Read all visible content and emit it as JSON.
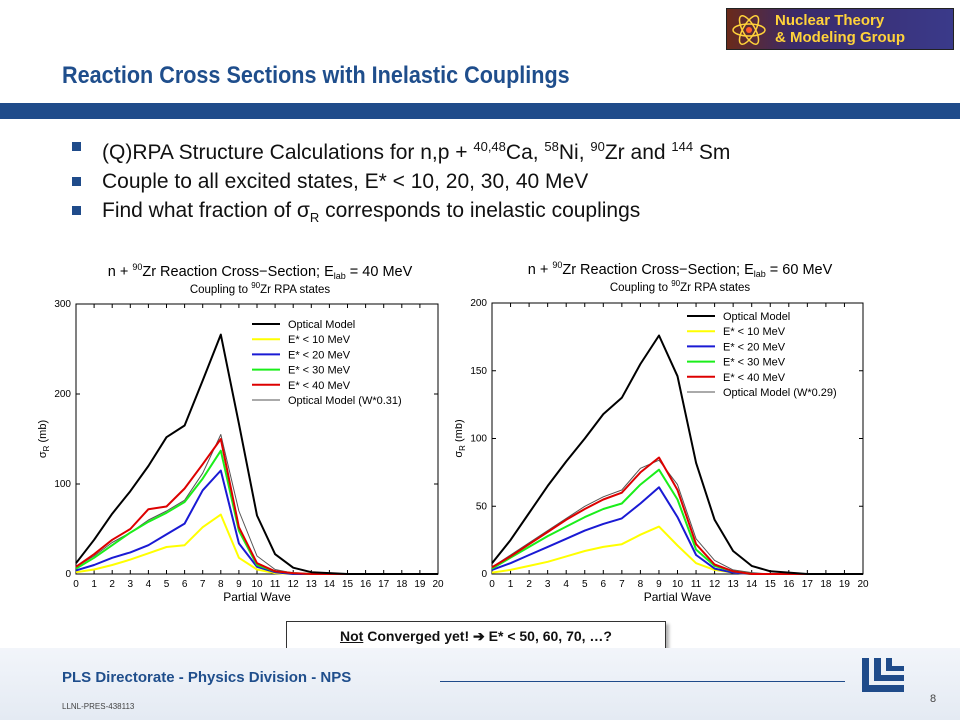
{
  "logo": {
    "line1": "Nuclear Theory",
    "line2": "& Modeling Group"
  },
  "title": "Reaction Cross Sections with Inelastic Couplings",
  "bullets": {
    "b1": {
      "pre": "(Q)RPA Structure Calculations for n,p + ",
      "s1": "40,48",
      "t1": "Ca, ",
      "s2": "58",
      "t2": "Ni, ",
      "s3": "90",
      "t3": "Zr and ",
      "s4": "144",
      "t4": " Sm"
    },
    "b2": "Couple to all excited states, E* < 10, 20, 30, 40 MeV",
    "b3": {
      "pre": "Find what fraction of σ",
      "sub": "R",
      "post": " corresponds to inelastic couplings"
    }
  },
  "note": {
    "underlined": "Not",
    "rest1": " Converged yet! ",
    "arrow": "➔",
    "rest2": " E* < 50, 60, 70, …?"
  },
  "footer": {
    "text": "PLS Directorate - Physics Division -  NPS",
    "id": "LLNL-PRES-438113",
    "page": "8"
  },
  "colors": {
    "optical": "#000000",
    "e10": "#ffff00",
    "e20": "#1a1ad4",
    "e30": "#1aee1a",
    "e40": "#dd0000",
    "scaled": "#555555",
    "accent": "#1f4b8a"
  },
  "chart_data": [
    {
      "type": "line",
      "title": "n + 90Zr Reaction Cross−Section; E_lab = 40 MeV",
      "subtitle": "Coupling to 90Zr RPA states",
      "xlabel": "Partial Wave",
      "ylabel": "σR (mb)",
      "xlim": [
        0,
        20
      ],
      "ylim": [
        0,
        300
      ],
      "x_ticks": [
        0,
        1,
        2,
        3,
        4,
        5,
        6,
        7,
        8,
        9,
        10,
        11,
        12,
        13,
        14,
        15,
        16,
        17,
        18,
        19,
        20
      ],
      "y_ticks": [
        0,
        100,
        200,
        300
      ],
      "legend_position": "top-right",
      "series": [
        {
          "name": "Optical Model",
          "color": "#000000",
          "width": 2,
          "x": [
            0,
            1,
            2,
            3,
            4,
            5,
            6,
            7,
            8,
            9,
            10,
            11,
            12,
            13,
            14,
            15,
            16,
            17,
            18,
            19,
            20
          ],
          "y": [
            12,
            38,
            67,
            92,
            120,
            152,
            165,
            215,
            266,
            167,
            65,
            22,
            7,
            2,
            1,
            0,
            0,
            0,
            0,
            0,
            0
          ]
        },
        {
          "name": "E* < 10 MeV",
          "color": "#ffff00",
          "width": 2,
          "x": [
            0,
            1,
            2,
            3,
            4,
            5,
            6,
            7,
            8,
            9,
            10,
            11,
            12,
            13,
            14,
            15,
            16,
            17,
            18,
            19,
            20
          ],
          "y": [
            2,
            5,
            10,
            16,
            23,
            30,
            32,
            52,
            66,
            18,
            5,
            1,
            0,
            0,
            0,
            0,
            0,
            0,
            0,
            0,
            0
          ]
        },
        {
          "name": "E* < 20 MeV",
          "color": "#1a1ad4",
          "width": 2,
          "x": [
            0,
            1,
            2,
            3,
            4,
            5,
            6,
            7,
            8,
            9,
            10,
            11,
            12,
            13,
            14,
            15,
            16,
            17,
            18,
            19,
            20
          ],
          "y": [
            4,
            10,
            18,
            24,
            32,
            44,
            56,
            93,
            115,
            34,
            8,
            2,
            0,
            0,
            0,
            0,
            0,
            0,
            0,
            0,
            0
          ]
        },
        {
          "name": "E* < 30 MeV",
          "color": "#1aee1a",
          "width": 2,
          "x": [
            0,
            1,
            2,
            3,
            4,
            5,
            6,
            7,
            8,
            9,
            10,
            11,
            12,
            13,
            14,
            15,
            16,
            17,
            18,
            19,
            20
          ],
          "y": [
            6,
            18,
            32,
            46,
            58,
            68,
            80,
            106,
            137,
            48,
            10,
            3,
            1,
            0,
            0,
            0,
            0,
            0,
            0,
            0,
            0
          ]
        },
        {
          "name": "E* < 40 MeV",
          "color": "#dd0000",
          "width": 2,
          "x": [
            0,
            1,
            2,
            3,
            4,
            5,
            6,
            7,
            8,
            9,
            10,
            11,
            12,
            13,
            14,
            15,
            16,
            17,
            18,
            19,
            20
          ],
          "y": [
            8,
            22,
            38,
            50,
            72,
            75,
            95,
            122,
            150,
            52,
            12,
            3,
            1,
            0,
            0,
            0,
            0,
            0,
            0,
            0,
            0
          ]
        },
        {
          "name": "Optical Model (W*0.31)",
          "color": "#555555",
          "width": 1,
          "x": [
            0,
            1,
            2,
            3,
            4,
            5,
            6,
            7,
            8,
            9,
            10,
            11,
            12,
            13,
            14,
            15,
            16,
            17,
            18,
            19,
            20
          ],
          "y": [
            8,
            20,
            35,
            46,
            60,
            70,
            82,
            112,
            155,
            70,
            20,
            5,
            1,
            0,
            0,
            0,
            0,
            0,
            0,
            0,
            0
          ]
        }
      ]
    },
    {
      "type": "line",
      "title": "n + 90Zr Reaction Cross−Section; E_lab = 60 MeV",
      "subtitle": "Coupling to 90Zr RPA states",
      "xlabel": "Partial Wave",
      "ylabel": "σR (mb)",
      "xlim": [
        0,
        20
      ],
      "ylim": [
        0,
        200
      ],
      "x_ticks": [
        0,
        1,
        2,
        3,
        4,
        5,
        6,
        7,
        8,
        9,
        10,
        11,
        12,
        13,
        14,
        15,
        16,
        17,
        18,
        19,
        20
      ],
      "y_ticks": [
        0,
        50,
        100,
        150,
        200
      ],
      "legend_position": "top-right",
      "series": [
        {
          "name": "Optical Model",
          "color": "#000000",
          "width": 2,
          "x": [
            0,
            1,
            2,
            3,
            4,
            5,
            6,
            7,
            8,
            9,
            10,
            11,
            12,
            13,
            14,
            15,
            16,
            17,
            18,
            19,
            20
          ],
          "y": [
            8,
            25,
            45,
            65,
            83,
            100,
            118,
            130,
            155,
            176,
            146,
            82,
            40,
            17,
            6,
            2,
            1,
            0,
            0,
            0,
            0
          ]
        },
        {
          "name": "E* < 10 MeV",
          "color": "#ffff00",
          "width": 2,
          "x": [
            0,
            1,
            2,
            3,
            4,
            5,
            6,
            7,
            8,
            9,
            10,
            11,
            12,
            13,
            14,
            15,
            16,
            17,
            18,
            19,
            20
          ],
          "y": [
            1,
            3,
            6,
            9,
            13,
            17,
            20,
            22,
            29,
            35,
            21,
            8,
            3,
            1,
            0,
            0,
            0,
            0,
            0,
            0,
            0
          ]
        },
        {
          "name": "E* < 20 MeV",
          "color": "#1a1ad4",
          "width": 2,
          "x": [
            0,
            1,
            2,
            3,
            4,
            5,
            6,
            7,
            8,
            9,
            10,
            11,
            12,
            13,
            14,
            15,
            16,
            17,
            18,
            19,
            20
          ],
          "y": [
            3,
            8,
            14,
            20,
            26,
            32,
            37,
            41,
            52,
            64,
            42,
            14,
            4,
            1,
            0,
            0,
            0,
            0,
            0,
            0,
            0
          ]
        },
        {
          "name": "E* < 30 MeV",
          "color": "#1aee1a",
          "width": 2,
          "x": [
            0,
            1,
            2,
            3,
            4,
            5,
            6,
            7,
            8,
            9,
            10,
            11,
            12,
            13,
            14,
            15,
            16,
            17,
            18,
            19,
            20
          ],
          "y": [
            4,
            12,
            20,
            28,
            35,
            42,
            48,
            52,
            66,
            77,
            55,
            18,
            6,
            2,
            0,
            0,
            0,
            0,
            0,
            0,
            0
          ]
        },
        {
          "name": "E* < 40 MeV",
          "color": "#dd0000",
          "width": 2,
          "x": [
            0,
            1,
            2,
            3,
            4,
            5,
            6,
            7,
            8,
            9,
            10,
            11,
            12,
            13,
            14,
            15,
            16,
            17,
            18,
            19,
            20
          ],
          "y": [
            5,
            13,
            22,
            31,
            40,
            48,
            55,
            60,
            75,
            86,
            62,
            22,
            7,
            2,
            0,
            0,
            0,
            0,
            0,
            0,
            0
          ]
        },
        {
          "name": "Optical Model (W*0.29)",
          "color": "#555555",
          "width": 1,
          "x": [
            0,
            1,
            2,
            3,
            4,
            5,
            6,
            7,
            8,
            9,
            10,
            11,
            12,
            13,
            14,
            15,
            16,
            17,
            18,
            19,
            20
          ],
          "y": [
            5,
            14,
            23,
            32,
            41,
            50,
            57,
            62,
            78,
            84,
            66,
            26,
            10,
            3,
            1,
            0,
            0,
            0,
            0,
            0,
            0
          ]
        }
      ]
    }
  ]
}
